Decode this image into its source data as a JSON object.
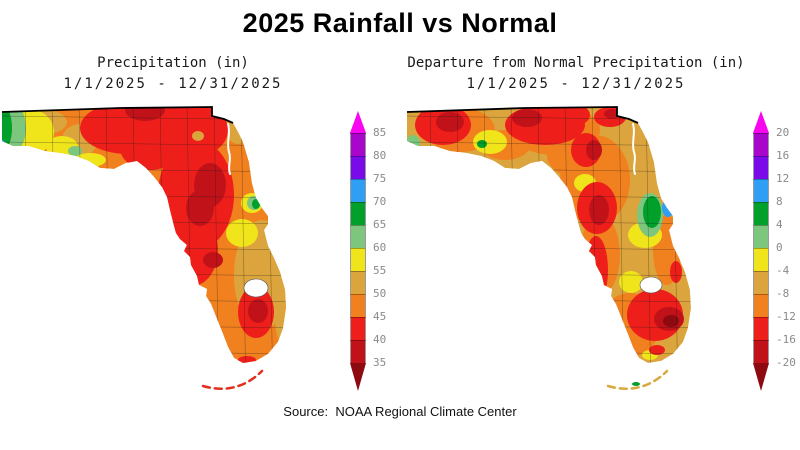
{
  "page_title": "2025 Rainfall vs Normal",
  "source_line": "Source:  NOAA Regional Climate Center",
  "panels": {
    "left": {
      "title": "Precipitation (in)",
      "subtitle": "1/1/2025 - 12/31/2025",
      "colorbar_labels": [
        "85",
        "80",
        "75",
        "70",
        "65",
        "60",
        "55",
        "50",
        "45",
        "40",
        "35"
      ]
    },
    "right": {
      "title": "Departure from Normal Precipitation (in)",
      "subtitle": "1/1/2025 - 12/31/2025",
      "colorbar_labels": [
        "20",
        "16",
        "12",
        "8",
        "4",
        "0",
        "-4",
        "-8",
        "-12",
        "-16",
        "-20"
      ]
    }
  },
  "colorbar": {
    "colors_top_to_bottom": [
      "#F906F0",
      "#A807CB",
      "#7A0BE8",
      "#2E9FF5",
      "#00A02B",
      "#7CC67D",
      "#F0E41A",
      "#DCA43C",
      "#F1801E",
      "#EE1F1B",
      "#C1121A",
      "#8C0A10"
    ]
  },
  "map_colors": {
    "base_left": "#F1801E",
    "base_right": "#DCA43C",
    "lake": "#FFFFFF",
    "border": "#000000"
  }
}
